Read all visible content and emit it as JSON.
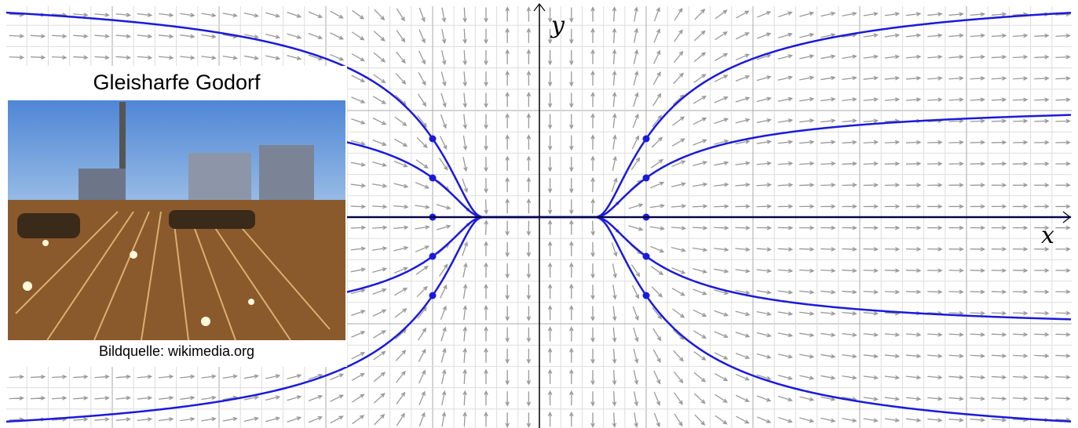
{
  "inset": {
    "title": "Gleisharfe Godorf",
    "caption": "Bildquelle: wikimedia.org"
  },
  "axes": {
    "x_label": "x",
    "y_label": "y"
  }
}
